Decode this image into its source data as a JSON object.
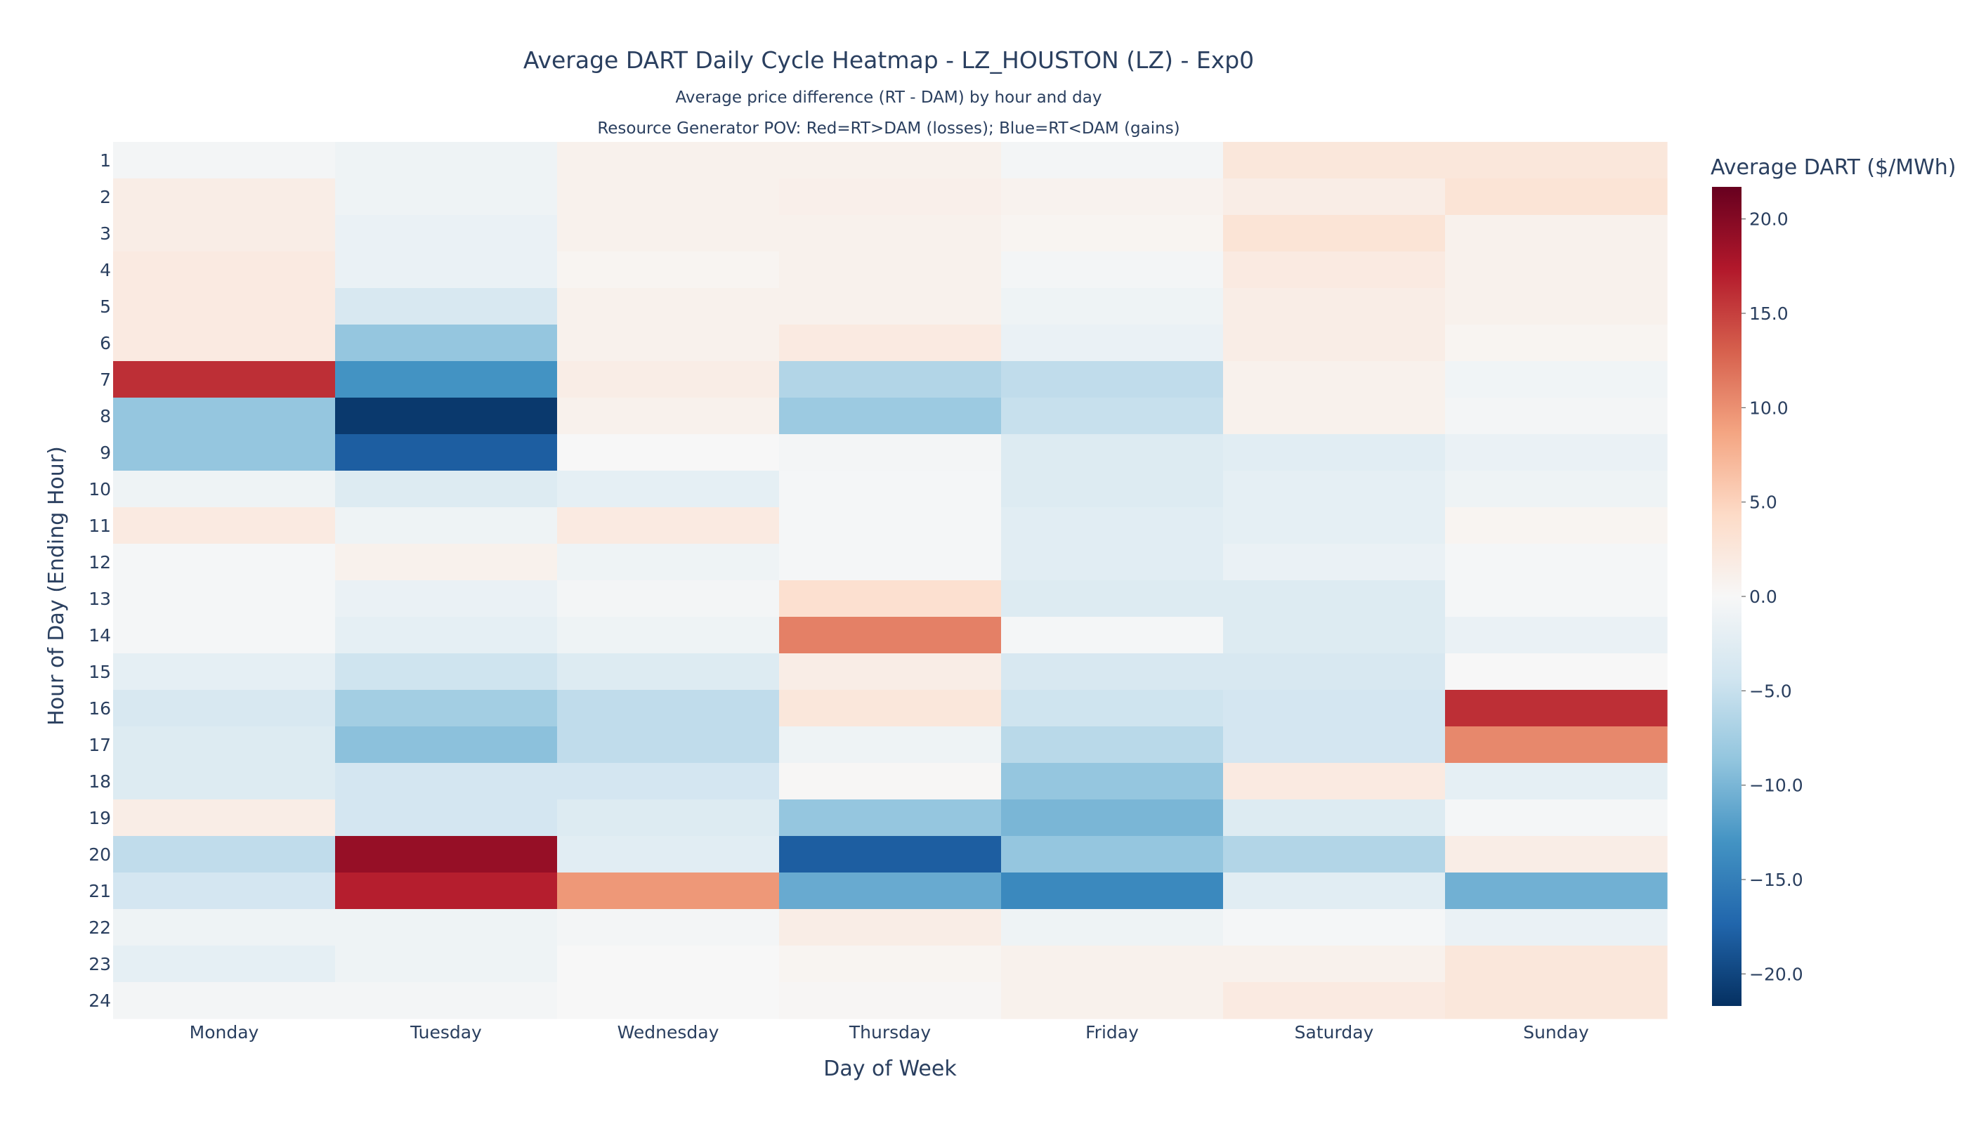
{
  "chart_data": {
    "type": "heatmap",
    "title": "Average DART Daily Cycle Heatmap - LZ_HOUSTON (LZ) - Exp0",
    "subtitle_lines": [
      "Average price difference (RT - DAM) by hour and day",
      "Resource Generator POV: Red=RT>DAM (losses); Blue=RT<DAM (gains)"
    ],
    "xlabel": "Day of Week",
    "ylabel": "Hour of Day (Ending Hour)",
    "x": [
      "Monday",
      "Tuesday",
      "Wednesday",
      "Thursday",
      "Friday",
      "Saturday",
      "Sunday"
    ],
    "y": [
      "1",
      "2",
      "3",
      "4",
      "5",
      "6",
      "7",
      "8",
      "9",
      "10",
      "11",
      "12",
      "13",
      "14",
      "15",
      "16",
      "17",
      "18",
      "19",
      "20",
      "21",
      "22",
      "23",
      "24"
    ],
    "colorbar": {
      "title": "Average DART ($/MWh)",
      "range": [
        -21.7,
        21.7
      ],
      "ticks": [
        20,
        15,
        10,
        5,
        0,
        -5,
        -10,
        -15,
        -20
      ],
      "tick_labels": [
        "20.0",
        "15.0",
        "10.0",
        "5.0",
        "0.0",
        "−5.0",
        "−10.0",
        "−15.0",
        "−20.0"
      ],
      "colorscale": [
        [
          0.0,
          "#053061"
        ],
        [
          0.1,
          "#2166ac"
        ],
        [
          0.2,
          "#4393c3"
        ],
        [
          0.3,
          "#92c5de"
        ],
        [
          0.4,
          "#d1e5f0"
        ],
        [
          0.5,
          "#f7f7f7"
        ],
        [
          0.6,
          "#fddbc7"
        ],
        [
          0.7,
          "#f4a582"
        ],
        [
          0.8,
          "#d6604d"
        ],
        [
          0.9,
          "#b2182b"
        ],
        [
          1.0,
          "#67001f"
        ]
      ]
    },
    "z": [
      [
        -0.5,
        -1.0,
        1.0,
        1.0,
        -0.5,
        2.5,
        2.5
      ],
      [
        1.5,
        -1.0,
        1.0,
        1.2,
        0.8,
        1.5,
        3.0
      ],
      [
        1.5,
        -1.5,
        1.0,
        1.0,
        0.5,
        3.0,
        1.0
      ],
      [
        2.0,
        -1.5,
        0.5,
        1.0,
        -0.5,
        2.0,
        1.0
      ],
      [
        2.0,
        -3.5,
        1.0,
        1.0,
        -1.0,
        1.5,
        1.0
      ],
      [
        2.0,
        -8.5,
        1.0,
        2.0,
        -1.5,
        1.5,
        0.5
      ],
      [
        16.0,
        -13.0,
        1.5,
        -6.5,
        -5.5,
        1.0,
        -0.8
      ],
      [
        -8.5,
        -21.0,
        1.0,
        -8.0,
        -5.0,
        1.0,
        -0.5
      ],
      [
        -8.5,
        -18.0,
        0.0,
        -0.5,
        -3.0,
        -2.5,
        -1.5
      ],
      [
        -1.0,
        -3.0,
        -2.0,
        -0.3,
        -3.0,
        -2.0,
        -1.0
      ],
      [
        2.0,
        -1.0,
        2.0,
        -0.3,
        -2.5,
        -2.0,
        0.5
      ],
      [
        -0.3,
        1.0,
        -1.0,
        -0.3,
        -2.5,
        -1.5,
        -0.3
      ],
      [
        -0.3,
        -1.5,
        -0.5,
        3.5,
        -3.0,
        -3.0,
        -0.3
      ],
      [
        -0.3,
        -2.0,
        -1.0,
        11.0,
        -0.3,
        -3.0,
        -1.5
      ],
      [
        -2.0,
        -4.5,
        -3.0,
        1.5,
        -3.5,
        -3.5,
        0.0
      ],
      [
        -3.5,
        -7.5,
        -5.5,
        2.5,
        -4.5,
        -4.0,
        16.0
      ],
      [
        -3.0,
        -9.0,
        -5.5,
        -1.0,
        -6.0,
        -4.0,
        10.5
      ],
      [
        -3.0,
        -4.0,
        -4.0,
        0.2,
        -8.5,
        2.0,
        -2.0
      ],
      [
        1.5,
        -4.0,
        -3.0,
        -8.5,
        -10.0,
        -3.0,
        -0.3
      ],
      [
        -5.5,
        19.0,
        -2.5,
        -18.0,
        -8.5,
        -6.5,
        1.5
      ],
      [
        -4.0,
        17.0,
        9.5,
        -11.0,
        -14.0,
        -2.5,
        -10.5
      ],
      [
        -1.0,
        -1.0,
        -0.5,
        1.5,
        -1.0,
        -0.3,
        -1.5
      ],
      [
        -2.0,
        -1.0,
        0.0,
        0.5,
        1.0,
        1.0,
        2.5
      ],
      [
        -0.5,
        -0.5,
        0.0,
        0.3,
        1.0,
        2.0,
        2.5
      ]
    ]
  }
}
